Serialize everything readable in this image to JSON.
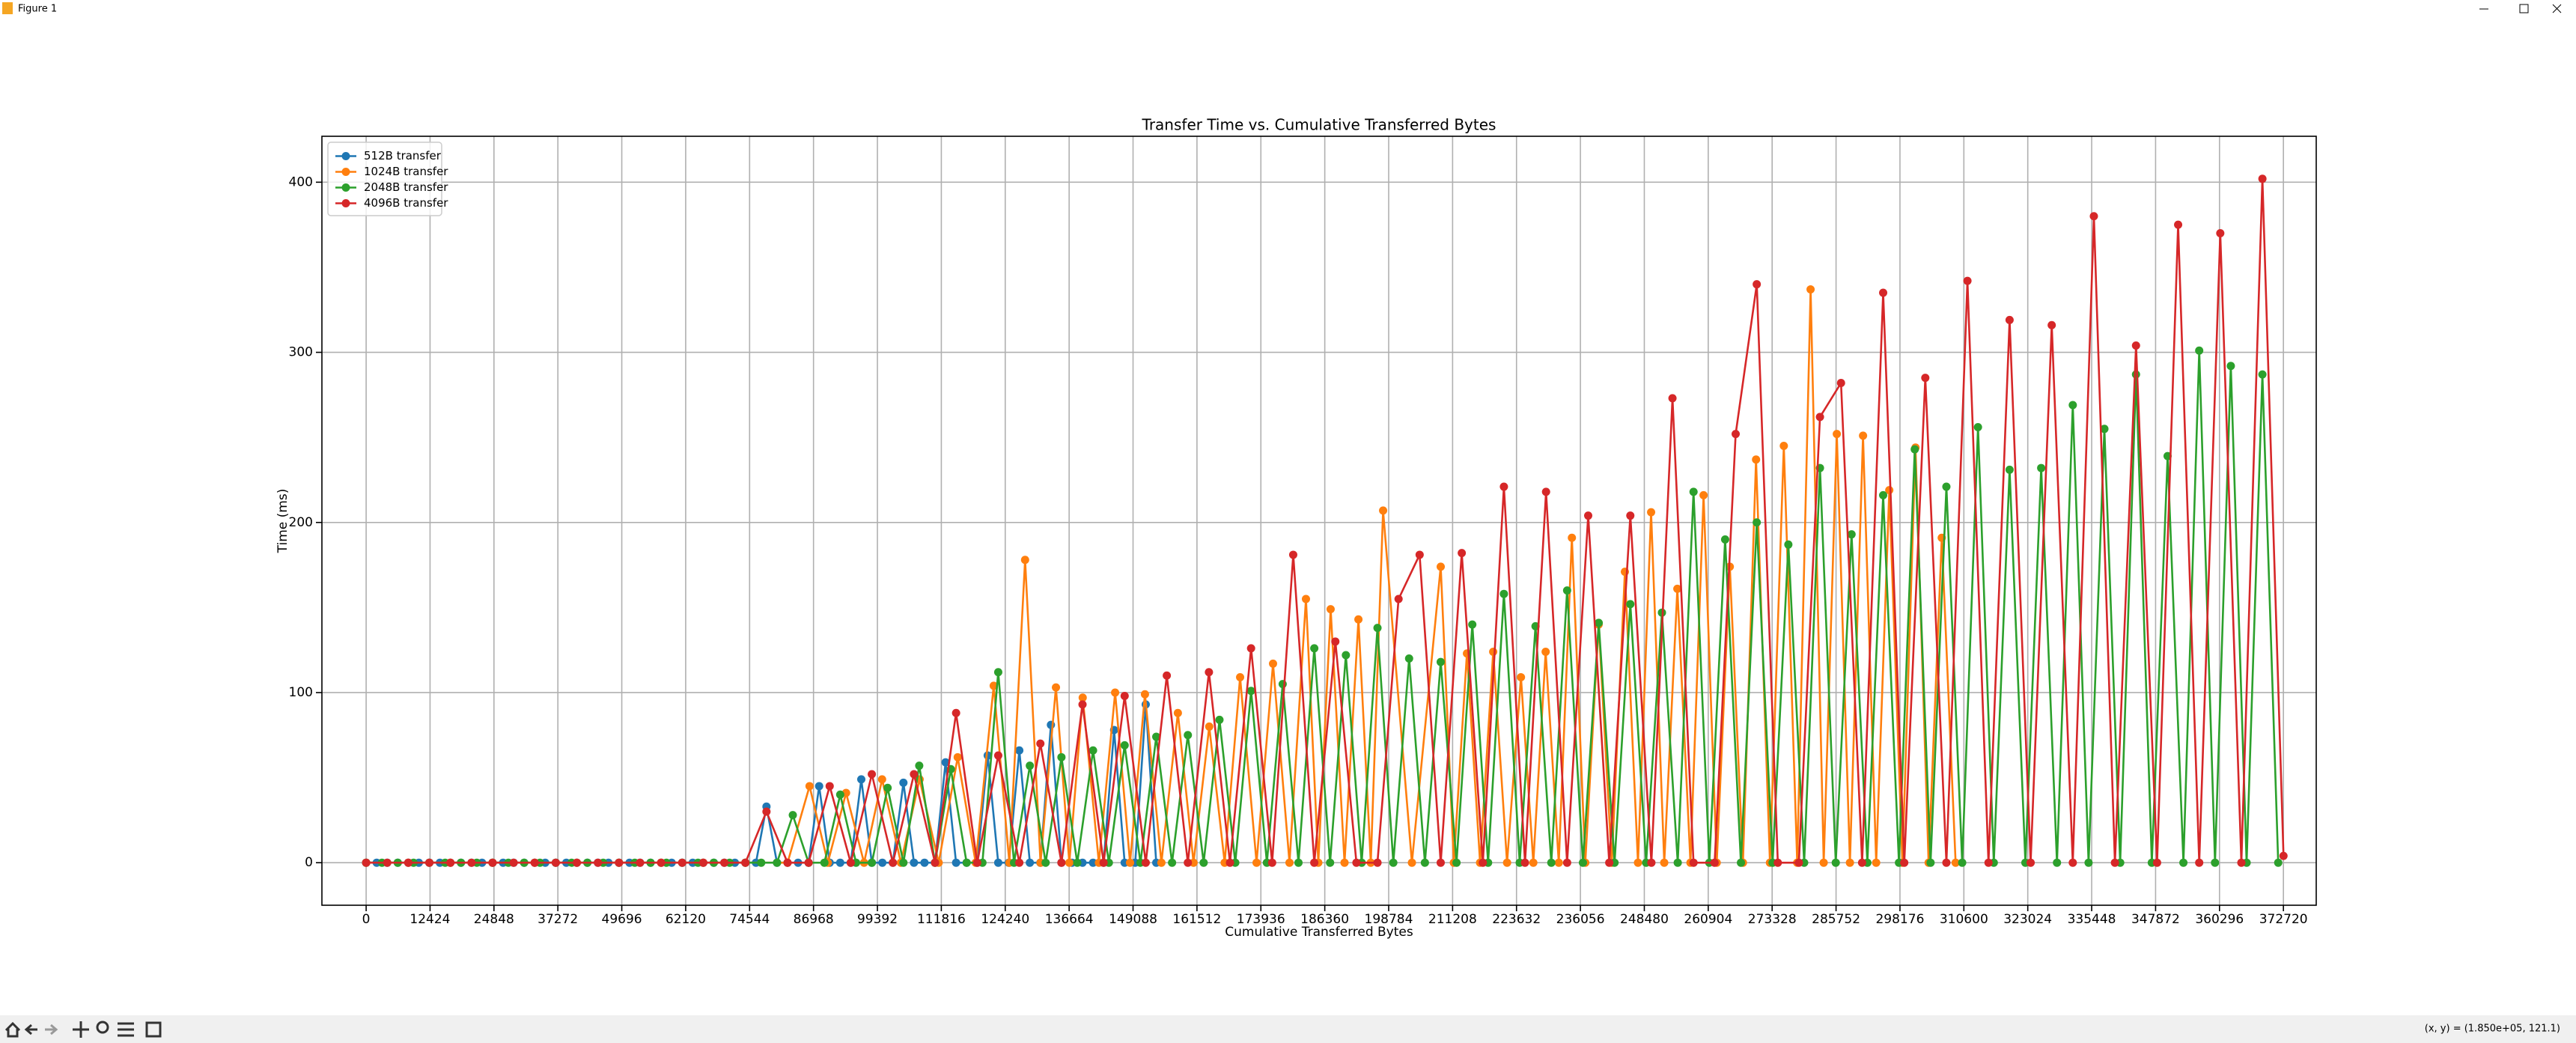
{
  "window": {
    "title": "Figure 1"
  },
  "status": "(x, y) = (1.850e+05, 121.1)",
  "chart_data": {
    "type": "line",
    "title": "Transfer Time vs. Cumulative Transferred Bytes",
    "x_label": "Cumulative Transferred Bytes",
    "y_label": "Time (ms)",
    "xlim": [
      -8600,
      379100
    ],
    "ylim": [
      -25,
      427
    ],
    "xticks": [
      0,
      12424,
      24848,
      37272,
      49696,
      62120,
      74544,
      86968,
      99392,
      111816,
      124240,
      136664,
      149088,
      161512,
      173936,
      186360,
      198784,
      211208,
      223632,
      236056,
      248480,
      260904,
      273328,
      285752,
      298176,
      310600,
      323024,
      335448,
      347872,
      360296,
      372720
    ],
    "yticks": [
      0,
      100,
      200,
      300,
      400
    ],
    "grid": true,
    "legend": "upper left",
    "marker": "o",
    "series": [
      {
        "name": "512B transfer",
        "color": "#1f77b4",
        "x": [
          0,
          2048,
          4096,
          6144,
          8192,
          10240,
          12288,
          14336,
          16384,
          18432,
          20480,
          22528,
          24576,
          26624,
          28672,
          30720,
          32768,
          34816,
          36864,
          38912,
          40960,
          43008,
          45056,
          47104,
          49152,
          51200,
          53248,
          55296,
          57344,
          59392,
          61440,
          63488,
          65536,
          67584,
          69632,
          71680,
          73728,
          75776,
          77824,
          79872,
          81920,
          83968,
          86016,
          88064,
          90112,
          92160,
          94208,
          96256,
          98304,
          100352,
          102400,
          104448,
          106496,
          108544,
          110592,
          112640,
          114688,
          116736,
          118784,
          120832,
          122880,
          124928,
          126976,
          129024,
          131072,
          133120,
          135168,
          137216,
          139264,
          141312,
          143360,
          145408,
          147456,
          149504,
          151552,
          153600
        ],
        "values": [
          0,
          0,
          0,
          0,
          0,
          0,
          0,
          0,
          0,
          0,
          0,
          0,
          0,
          0,
          0,
          0,
          0,
          0,
          0,
          0,
          0,
          0,
          0,
          0,
          0,
          0,
          0,
          0,
          0,
          0,
          0,
          0,
          0,
          0,
          0,
          0,
          0,
          0,
          33,
          0,
          0,
          0,
          0,
          45,
          0,
          0,
          0,
          49,
          0,
          0,
          0,
          47,
          0,
          0,
          0,
          59,
          0,
          0,
          0,
          63,
          0,
          0,
          66,
          0,
          0,
          81,
          0,
          0,
          0,
          0,
          0,
          78,
          0,
          0,
          93,
          0
        ]
      },
      {
        "name": "1024B transfer",
        "color": "#ff7f0e",
        "x": [
          0,
          8192,
          16384,
          24576,
          32768,
          40960,
          49152,
          57344,
          65536,
          73728,
          81920,
          86200,
          89750,
          93300,
          96800,
          100300,
          103950,
          107600,
          111300,
          115000,
          118500,
          122000,
          125050,
          128100,
          131100,
          134100,
          136700,
          139300,
          142450,
          145600,
          148500,
          151400,
          154600,
          157800,
          160850,
          163900,
          166900,
          169900,
          173100,
          176300,
          179500,
          182700,
          185100,
          187500,
          190200,
          192900,
          195300,
          197700,
          203300,
          208900,
          211450,
          214000,
          216550,
          219100,
          221800,
          224500,
          226900,
          229300,
          231850,
          234400,
          237000,
          239600,
          242150,
          244700,
          247250,
          249800,
          252350,
          254900,
          257450,
          260000,
          262550,
          265100,
          267650,
          270200,
          272900,
          275600,
          278200,
          280800,
          283350,
          285900,
          288450,
          291000,
          293550,
          296100,
          298650,
          301200,
          303750,
          306300,
          309000
        ],
        "values": [
          0,
          0,
          0,
          0,
          0,
          0,
          0,
          0,
          0,
          0,
          0,
          45,
          0,
          41,
          0,
          49,
          0,
          49,
          0,
          62,
          0,
          104,
          0,
          178,
          0,
          103,
          0,
          97,
          0,
          100,
          0,
          99,
          0,
          88,
          0,
          80,
          0,
          109,
          0,
          117,
          0,
          155,
          0,
          149,
          0,
          143,
          0,
          207,
          0,
          174,
          0,
          123,
          0,
          124,
          0,
          109,
          0,
          124,
          0,
          191,
          0,
          140,
          0,
          171,
          0,
          206,
          0,
          161,
          0,
          216,
          0,
          174,
          0,
          237,
          0,
          245,
          0,
          337,
          0,
          252,
          0,
          251,
          0,
          219,
          0,
          244,
          0,
          191,
          0
        ]
      },
      {
        "name": "2048B transfer",
        "color": "#2ca02c",
        "x": [
          0,
          3072,
          6144,
          9216,
          12288,
          15360,
          18432,
          21504,
          24576,
          27648,
          30720,
          33792,
          36864,
          39936,
          43008,
          46080,
          49152,
          52224,
          55296,
          58368,
          61440,
          64512,
          67584,
          70656,
          73728,
          76800,
          79872,
          82944,
          86016,
          89088,
          92160,
          95232,
          98304,
          101376,
          104448,
          107520,
          110592,
          113664,
          116736,
          119808,
          122880,
          125952,
          129024,
          132096,
          135168,
          138240,
          141312,
          144384,
          147456,
          150528,
          153600,
          156672,
          159744,
          162816,
          165888,
          168960,
          172032,
          175104,
          178176,
          181248,
          184320,
          187392,
          190464,
          193536,
          196608,
          199680,
          202752,
          205824,
          208896,
          211968,
          215040,
          218112,
          221184,
          224256,
          227328,
          230400,
          233472,
          236544,
          239616,
          242688,
          245760,
          248832,
          251904,
          254976,
          258048,
          261120,
          264192,
          267264,
          270336,
          273408,
          276480,
          279552,
          282624,
          285696,
          288768,
          291840,
          294912,
          297984,
          301056,
          304128,
          307200,
          310272,
          313344,
          316416,
          319488,
          322560,
          325632,
          328704,
          331776,
          334848,
          337920,
          340992,
          344064,
          347136,
          350208,
          353280,
          356352,
          359424,
          362496,
          365568,
          368640,
          371712
        ],
        "values": [
          0,
          0,
          0,
          0,
          0,
          0,
          0,
          0,
          0,
          0,
          0,
          0,
          0,
          0,
          0,
          0,
          0,
          0,
          0,
          0,
          0,
          0,
          0,
          0,
          0,
          0,
          0,
          28,
          0,
          0,
          40,
          0,
          0,
          44,
          0,
          57,
          0,
          55,
          0,
          0,
          112,
          0,
          57,
          0,
          62,
          0,
          66,
          0,
          69,
          0,
          74,
          0,
          75,
          0,
          84,
          0,
          101,
          0,
          105,
          0,
          126,
          0,
          122,
          0,
          138,
          0,
          120,
          0,
          118,
          0,
          140,
          0,
          158,
          0,
          139,
          0,
          160,
          0,
          141,
          0,
          152,
          0,
          147,
          0,
          218,
          0,
          190,
          0,
          200,
          0,
          187,
          0,
          232,
          0,
          193,
          0,
          216,
          0,
          243,
          0,
          221,
          0,
          256,
          0,
          231,
          0,
          232,
          0,
          269,
          0,
          255,
          0,
          287,
          0,
          239,
          0,
          301,
          0,
          292,
          0,
          287,
          0
        ]
      },
      {
        "name": "4096B transfer",
        "color": "#d62728",
        "x": [
          0,
          4096,
          8192,
          12288,
          16384,
          20480,
          24576,
          28672,
          32768,
          36864,
          40960,
          45056,
          49152,
          53248,
          57344,
          61440,
          65536,
          69632,
          73728,
          77824,
          81920,
          86016,
          90112,
          94208,
          98304,
          102400,
          106496,
          110592,
          114688,
          118784,
          122880,
          126976,
          131072,
          135168,
          139264,
          143360,
          147456,
          151552,
          155648,
          159744,
          163840,
          167936,
          172032,
          176128,
          180224,
          184320,
          188416,
          192512,
          196608,
          200704,
          204800,
          208896,
          212992,
          217088,
          221184,
          225280,
          229376,
          233472,
          237568,
          241664,
          245760,
          249856,
          253952,
          258048,
          262144,
          266240,
          270336,
          274432,
          278528,
          282624,
          286720,
          290816,
          294912,
          299008,
          303104,
          307200,
          311296,
          315392,
          319488,
          323584,
          327680,
          331776,
          335872,
          339968,
          344064,
          348160,
          352256,
          356352,
          360448,
          364544,
          368640,
          372736
        ],
        "values": [
          0,
          0,
          0,
          0,
          0,
          0,
          0,
          0,
          0,
          0,
          0,
          0,
          0,
          0,
          0,
          0,
          0,
          0,
          0,
          30,
          0,
          0,
          45,
          0,
          52,
          0,
          52,
          0,
          88,
          0,
          63,
          0,
          70,
          0,
          93,
          0,
          98,
          0,
          110,
          0,
          112,
          0,
          126,
          0,
          181,
          0,
          130,
          0,
          0,
          155,
          181,
          0,
          182,
          0,
          221,
          0,
          218,
          0,
          204,
          0,
          204,
          0,
          273,
          0,
          0,
          252,
          340,
          0,
          0,
          262,
          282,
          0,
          335,
          0,
          285,
          0,
          342,
          0,
          319,
          0,
          316,
          0,
          380,
          0,
          304,
          0,
          375,
          0,
          370,
          0,
          402,
          4
        ]
      }
    ]
  }
}
